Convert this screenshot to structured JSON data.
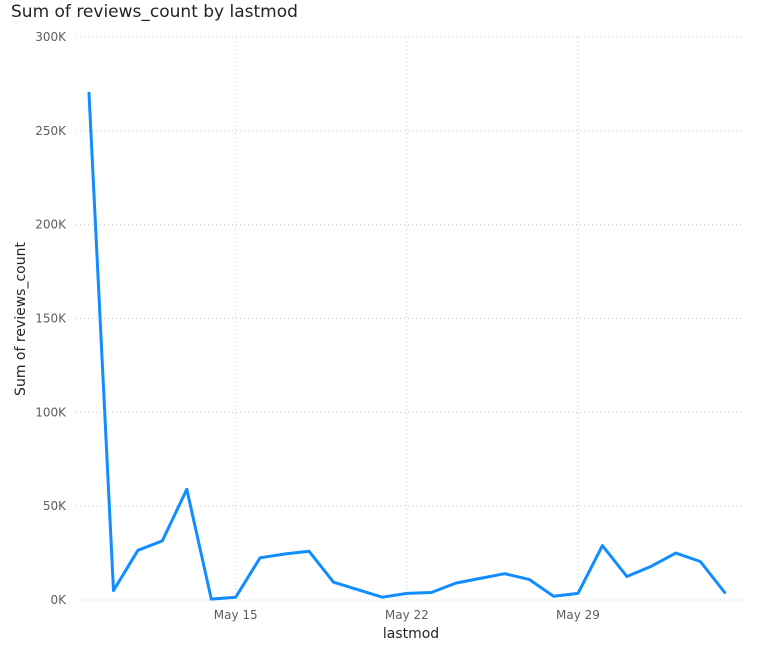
{
  "chart_data": {
    "type": "line",
    "title": "Sum of reviews_count by lastmod",
    "xlabel": "lastmod",
    "ylabel": "Sum of reviews_count",
    "ylim": [
      0,
      300000
    ],
    "y_ticks": [
      {
        "value": 0,
        "label": "0K"
      },
      {
        "value": 50000,
        "label": "50K"
      },
      {
        "value": 100000,
        "label": "100K"
      },
      {
        "value": 150000,
        "label": "150K"
      },
      {
        "value": 200000,
        "label": "200K"
      },
      {
        "value": 250000,
        "label": "250K"
      },
      {
        "value": 300000,
        "label": "300K"
      }
    ],
    "x_ticks": [
      {
        "date": "May 15",
        "label": "May 15"
      },
      {
        "date": "May 22",
        "label": "May 22"
      },
      {
        "date": "May 29",
        "label": "May 29"
      }
    ],
    "grid": true,
    "line_color": "#118DFF",
    "series": [
      {
        "x": [
          "May 9",
          "May 10",
          "May 11",
          "May 12",
          "May 13",
          "May 14",
          "May 15",
          "May 16",
          "May 17",
          "May 18",
          "May 19",
          "May 20",
          "May 21",
          "May 22",
          "May 23",
          "May 24",
          "May 25",
          "May 26",
          "May 27",
          "May 28",
          "May 29",
          "May 30",
          "May 31",
          "Jun 1",
          "Jun 2",
          "Jun 3",
          "Jun 4",
          "Jun 5"
        ],
        "values": [
          270000,
          5000,
          26500,
          31500,
          59000,
          500,
          1500,
          22500,
          24500,
          26000,
          9500,
          5500,
          1500,
          3500,
          4000,
          9000,
          11500,
          14000,
          11000,
          2000,
          3500,
          29000,
          12500,
          18000,
          25000,
          20500,
          4000,
          null
        ]
      }
    ]
  }
}
